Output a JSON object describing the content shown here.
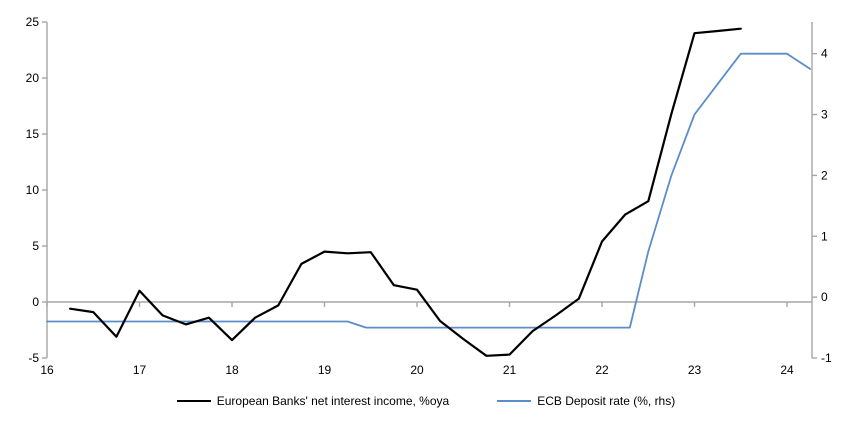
{
  "chart_data": {
    "type": "line",
    "title": "",
    "x_axis": {
      "ticks": [
        16,
        17,
        18,
        19,
        20,
        21,
        22,
        23,
        24
      ],
      "range": [
        16,
        24.27
      ]
    },
    "left_axis": {
      "ticks": [
        -5,
        0,
        5,
        10,
        15,
        20,
        25
      ],
      "range": [
        -5,
        25
      ]
    },
    "right_axis": {
      "ticks": [
        -1,
        0,
        1,
        2,
        3,
        4
      ],
      "range": [
        -1.0,
        4.52
      ]
    },
    "zero_line": true,
    "legend_position": "bottom",
    "series": [
      {
        "id": "nii",
        "name": "European Banks' net interest income, %oya",
        "axis": "left",
        "color": "#000000",
        "width": 2.2,
        "points": [
          [
            16.25,
            -0.6
          ],
          [
            16.5,
            -0.9
          ],
          [
            16.75,
            -3.1
          ],
          [
            17.0,
            1.0
          ],
          [
            17.25,
            -1.2
          ],
          [
            17.5,
            -2.0
          ],
          [
            17.75,
            -1.4
          ],
          [
            18.0,
            -3.4
          ],
          [
            18.25,
            -1.4
          ],
          [
            18.5,
            -0.3
          ],
          [
            18.75,
            3.4
          ],
          [
            19.0,
            4.5
          ],
          [
            19.25,
            4.35
          ],
          [
            19.5,
            4.45
          ],
          [
            19.75,
            1.5
          ],
          [
            20.0,
            1.1
          ],
          [
            20.25,
            -1.7
          ],
          [
            20.5,
            -3.3
          ],
          [
            20.75,
            -4.8
          ],
          [
            21.0,
            -4.7
          ],
          [
            21.25,
            -2.6
          ],
          [
            21.5,
            -1.2
          ],
          [
            21.75,
            0.3
          ],
          [
            22.0,
            5.4
          ],
          [
            22.25,
            7.8
          ],
          [
            22.5,
            9.0
          ],
          [
            22.75,
            16.8
          ],
          [
            23.0,
            24.0
          ],
          [
            23.25,
            24.2
          ],
          [
            23.5,
            24.4
          ]
        ]
      },
      {
        "id": "ecb",
        "name": "ECB Deposit rate (%, rhs)",
        "axis": "right",
        "color": "#5b8dc8",
        "width": 1.8,
        "points": [
          [
            16.0,
            -0.4
          ],
          [
            19.25,
            -0.4
          ],
          [
            19.45,
            -0.5
          ],
          [
            22.3,
            -0.5
          ],
          [
            22.5,
            0.75
          ],
          [
            22.75,
            2.0
          ],
          [
            23.0,
            3.0
          ],
          [
            23.25,
            3.5
          ],
          [
            23.5,
            4.0
          ],
          [
            24.0,
            4.0
          ],
          [
            24.25,
            3.75
          ]
        ]
      }
    ]
  },
  "colors": {
    "axis": "#a6a6a6",
    "zero_line": "#a6a6a6",
    "tick_text": "#000000",
    "background": "#ffffff"
  }
}
